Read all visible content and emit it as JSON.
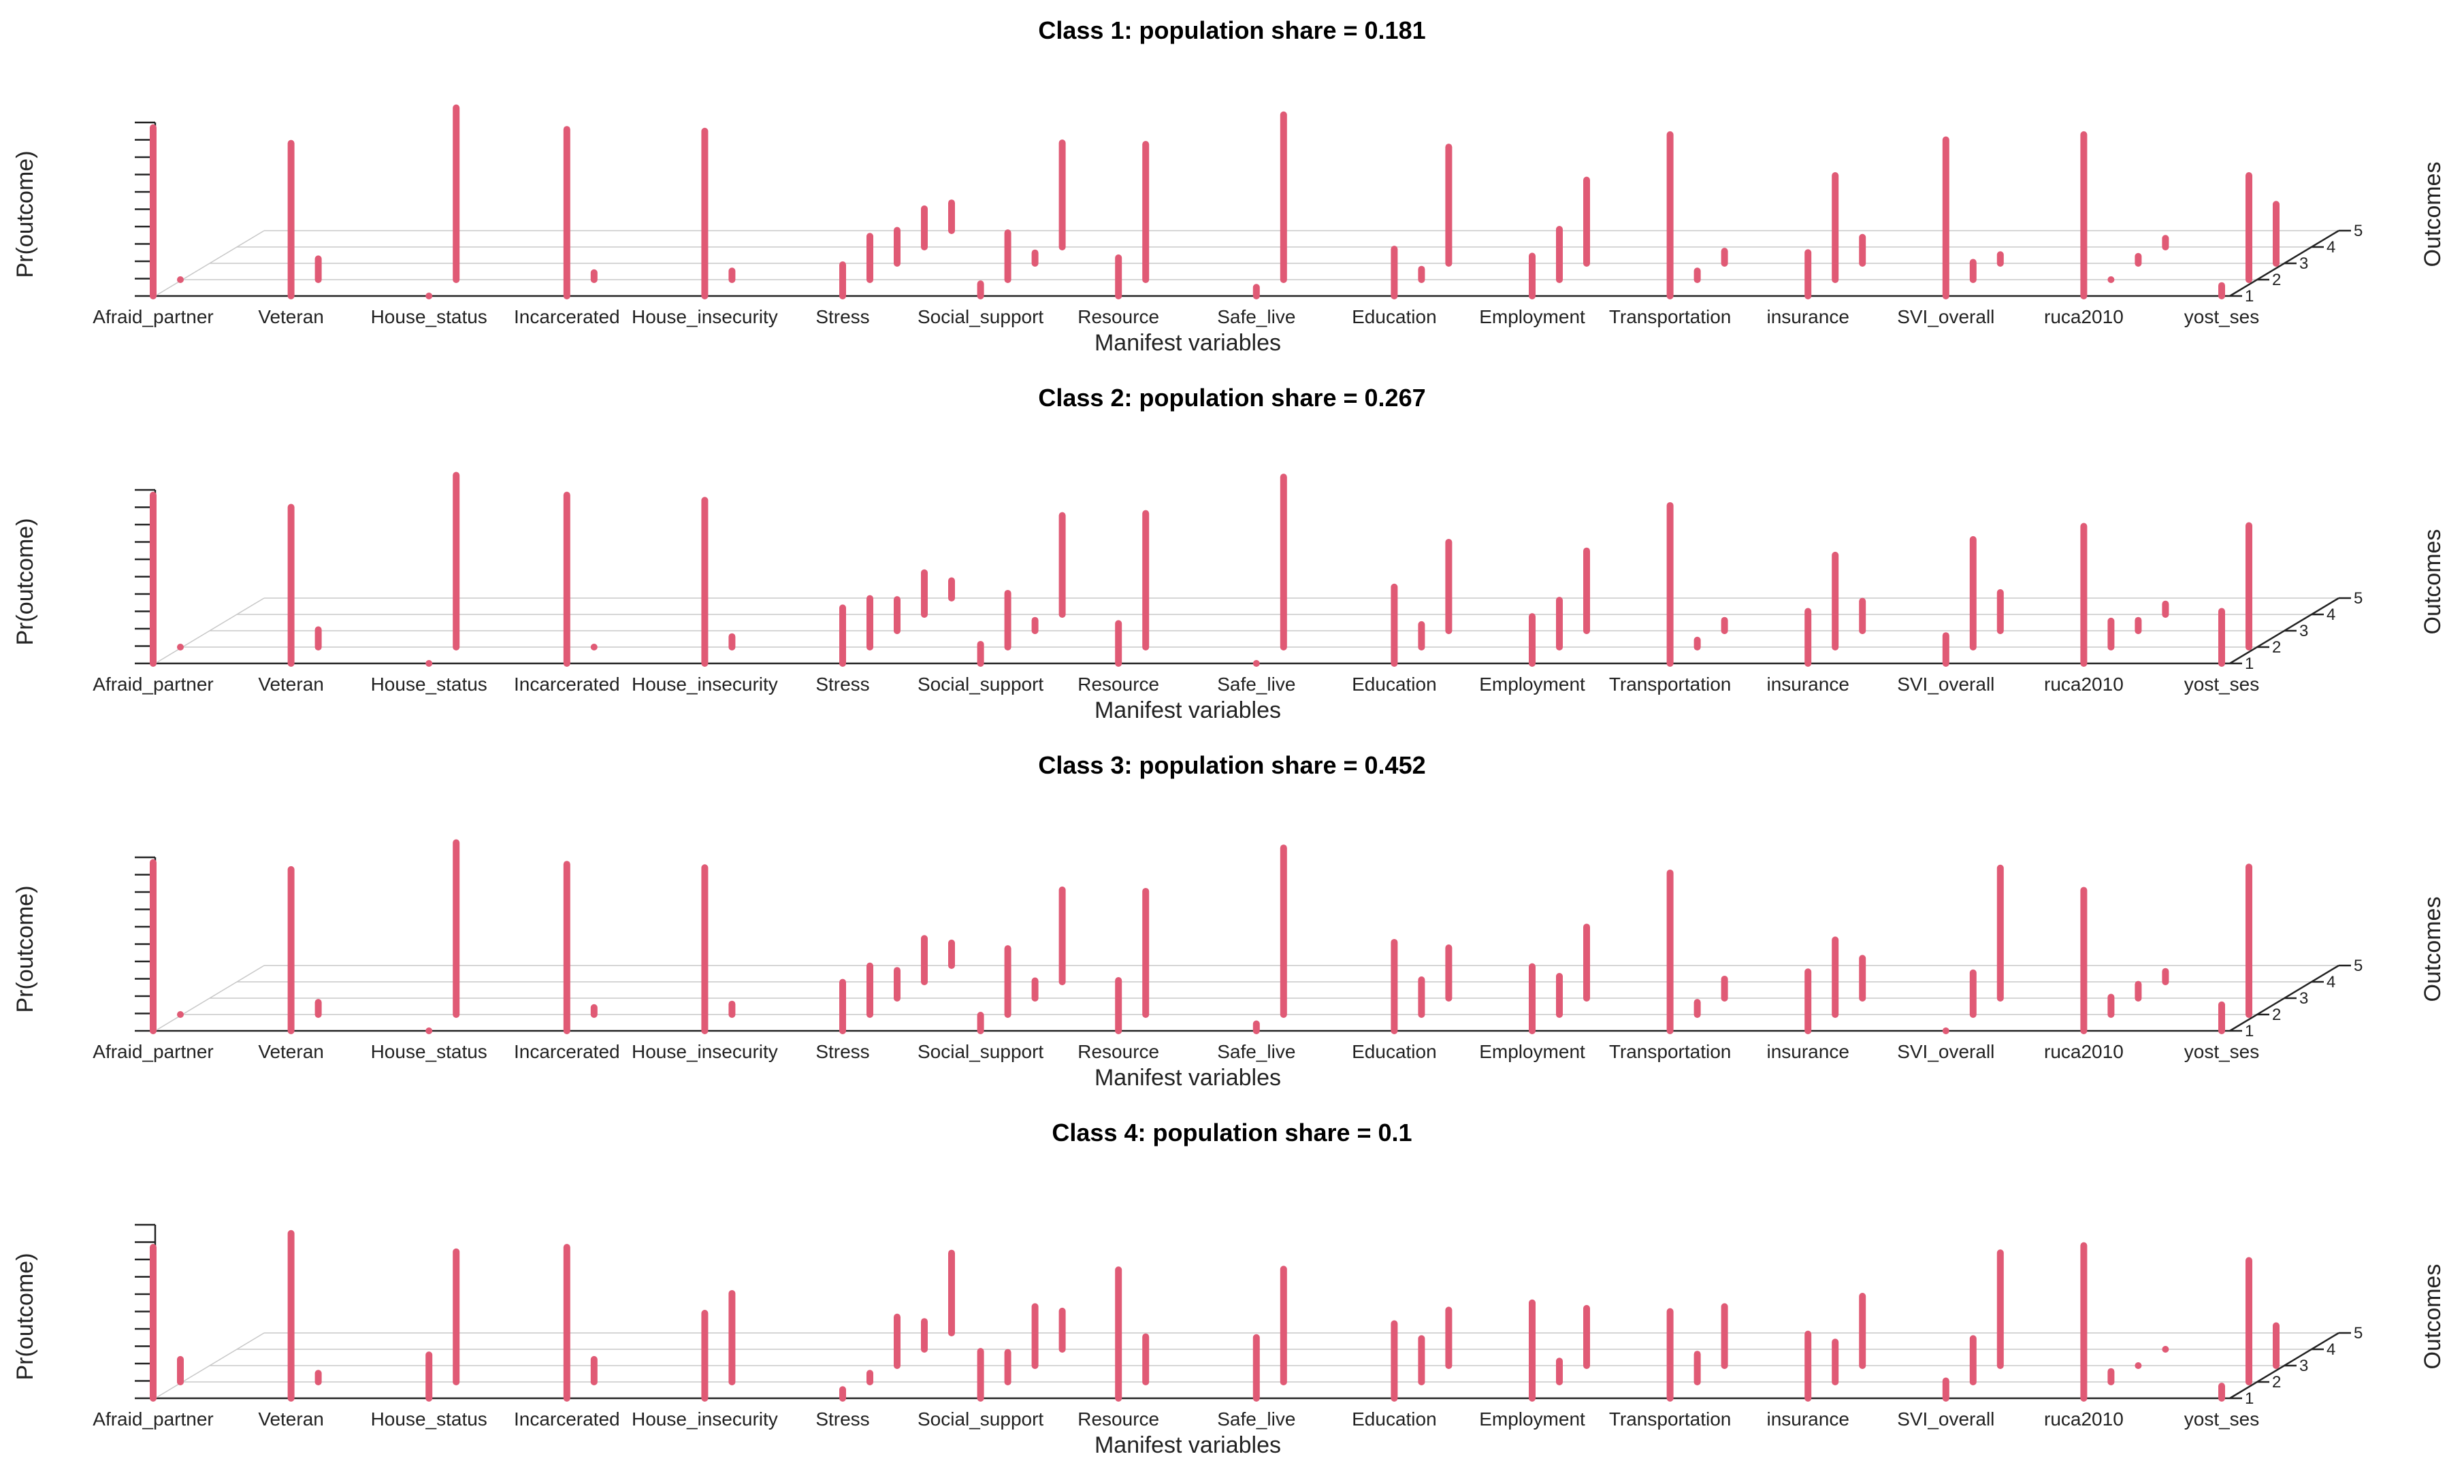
{
  "chart_data": {
    "type": "bar3d",
    "ylabel": "Pr(outcome)",
    "xlabel": "Manifest variables",
    "zlabel": "Outcomes",
    "outcome_levels": [
      "1",
      "2",
      "3",
      "4",
      "5"
    ],
    "bar_color": "#e05a75",
    "variables": [
      "Afraid_partner",
      "Veteran",
      "House_status",
      "Incarcerated",
      "House_insecurity",
      "Stress",
      "Social_support",
      "Resource",
      "Safe_live",
      "Education",
      "Employment",
      "Transportation",
      "insurance",
      "SVI_overall",
      "ruca2010",
      "yost_ses"
    ],
    "panels": [
      {
        "title": "Class 1: population share = 0.181",
        "values": [
          [
            0.97,
            0.03
          ],
          [
            0.88,
            0.12
          ],
          [
            0.01,
            0.99
          ],
          [
            0.96,
            0.04
          ],
          [
            0.95,
            0.05
          ],
          [
            0.18,
            0.25,
            0.19,
            0.22,
            0.16
          ],
          [
            0.07,
            0.27,
            0.06,
            0.6
          ],
          [
            0.22,
            0.78
          ],
          [
            0.05,
            0.95
          ],
          [
            0.27,
            0.06,
            0.67
          ],
          [
            0.23,
            0.29,
            0.48
          ],
          [
            0.93,
            0.05,
            0.07
          ],
          [
            0.25,
            0.6,
            0.15
          ],
          [
            0.9,
            0.1,
            0.05
          ],
          [
            0.93,
            0.02,
            0.04,
            0.05
          ],
          [
            0.06,
            0.6,
            0.34
          ]
        ]
      },
      {
        "title": "Class 2: population share = 0.267",
        "values": [
          [
            0.97,
            0.03
          ],
          [
            0.9,
            0.1
          ],
          [
            0.01,
            0.99
          ],
          [
            0.97,
            0.03
          ],
          [
            0.94,
            0.06
          ],
          [
            0.32,
            0.28,
            0.18,
            0.24,
            0.1
          ],
          [
            0.11,
            0.31,
            0.06,
            0.57
          ],
          [
            0.23,
            0.77
          ],
          [
            0.02,
            0.98
          ],
          [
            0.44,
            0.13,
            0.51
          ],
          [
            0.27,
            0.27,
            0.46
          ],
          [
            0.91,
            0.04,
            0.06
          ],
          [
            0.3,
            0.53,
            0.17
          ],
          [
            0.16,
            0.62,
            0.22
          ],
          [
            0.79,
            0.15,
            0.06,
            0.06
          ],
          [
            0.3,
            0.7
          ]
        ]
      },
      {
        "title": "Class 3: population share = 0.452",
        "values": [
          [
            0.97,
            0.03
          ],
          [
            0.93,
            0.07
          ],
          [
            0.01,
            0.99
          ],
          [
            0.96,
            0.04
          ],
          [
            0.94,
            0.06
          ],
          [
            0.28,
            0.28,
            0.16,
            0.25,
            0.13
          ],
          [
            0.09,
            0.38,
            0.1,
            0.53
          ],
          [
            0.29,
            0.71
          ],
          [
            0.04,
            0.96
          ],
          [
            0.51,
            0.2,
            0.29
          ],
          [
            0.37,
            0.22,
            0.41
          ],
          [
            0.91,
            0.07,
            0.11
          ],
          [
            0.34,
            0.43,
            0.23
          ],
          [
            0.01,
            0.24,
            0.75
          ],
          [
            0.81,
            0.1,
            0.08,
            0.06
          ],
          [
            0.15,
            0.85
          ]
        ]
      },
      {
        "title": "Class 4: population share = 0.1",
        "values": [
          [
            0.87,
            0.13
          ],
          [
            0.95,
            0.05
          ],
          [
            0.25,
            0.75
          ],
          [
            0.87,
            0.13
          ],
          [
            0.49,
            0.51
          ],
          [
            0.05,
            0.05,
            0.28,
            0.16,
            0.46
          ],
          [
            0.27,
            0.17,
            0.34,
            0.22
          ],
          [
            0.74,
            0.26
          ],
          [
            0.35,
            0.65
          ],
          [
            0.43,
            0.25,
            0.32
          ],
          [
            0.55,
            0.12,
            0.33
          ],
          [
            0.5,
            0.16,
            0.34
          ],
          [
            0.37,
            0.23,
            0.4
          ],
          [
            0.1,
            0.25,
            0.65
          ],
          [
            0.88,
            0.06,
            0.03,
            0.03
          ],
          [
            0.07,
            0.7,
            0.23
          ]
        ]
      }
    ]
  }
}
